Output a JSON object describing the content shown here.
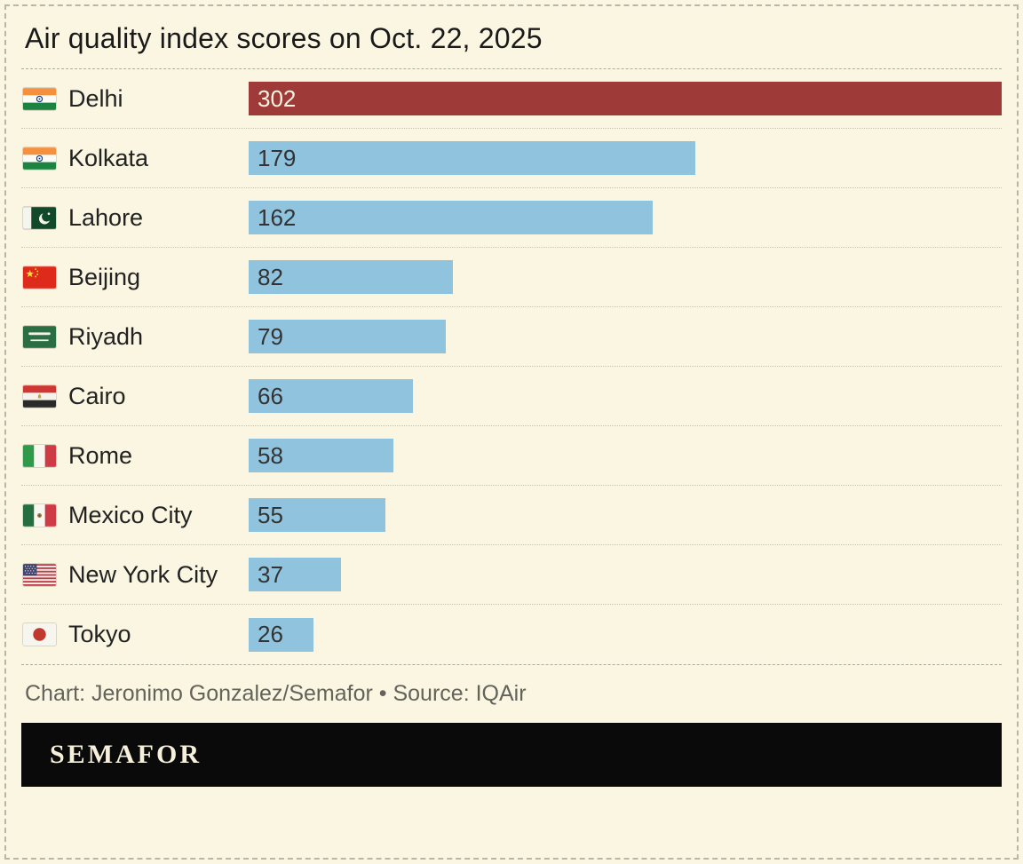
{
  "title": "Air quality index scores on Oct. 22, 2025",
  "chart_data": {
    "type": "bar",
    "orientation": "horizontal",
    "title": "Air quality index scores on Oct. 22, 2025",
    "xlabel": "",
    "ylabel": "",
    "xlim": [
      0,
      302
    ],
    "grid": false,
    "legend": false,
    "value_labels": "inside-bar-left",
    "categories": [
      "Delhi",
      "Kolkata",
      "Lahore",
      "Beijing",
      "Riyadh",
      "Cairo",
      "Rome",
      "Mexico City",
      "New York City",
      "Tokyo"
    ],
    "values": [
      302,
      179,
      162,
      82,
      79,
      66,
      58,
      55,
      37,
      26
    ],
    "rows": [
      {
        "city": "Delhi",
        "flag": "india-flag",
        "value": 302,
        "bar_color": "#9e3a38",
        "label_color": "#f8f4e3"
      },
      {
        "city": "Kolkata",
        "flag": "india-flag",
        "value": 179,
        "bar_color": "#8fc3de",
        "label_color": "#333333"
      },
      {
        "city": "Lahore",
        "flag": "pakistan-flag",
        "value": 162,
        "bar_color": "#8fc3de",
        "label_color": "#333333"
      },
      {
        "city": "Beijing",
        "flag": "china-flag",
        "value": 82,
        "bar_color": "#8fc3de",
        "label_color": "#333333"
      },
      {
        "city": "Riyadh",
        "flag": "saudi-arabia-flag",
        "value": 79,
        "bar_color": "#8fc3de",
        "label_color": "#333333"
      },
      {
        "city": "Cairo",
        "flag": "egypt-flag",
        "value": 66,
        "bar_color": "#8fc3de",
        "label_color": "#333333"
      },
      {
        "city": "Rome",
        "flag": "italy-flag",
        "value": 58,
        "bar_color": "#8fc3de",
        "label_color": "#333333"
      },
      {
        "city": "Mexico City",
        "flag": "mexico-flag",
        "value": 55,
        "bar_color": "#8fc3de",
        "label_color": "#333333"
      },
      {
        "city": "New York City",
        "flag": "usa-flag",
        "value": 37,
        "bar_color": "#8fc3de",
        "label_color": "#333333"
      },
      {
        "city": "Tokyo",
        "flag": "japan-flag",
        "value": 26,
        "bar_color": "#8fc3de",
        "label_color": "#333333"
      }
    ]
  },
  "footer": {
    "credit": "Chart: Jeronimo Gonzalez/Semafor • Source: IQAir"
  },
  "brand": {
    "logo_text": "SEMAFOR"
  },
  "colors": {
    "background": "#faf6e1",
    "bar_default": "#8fc3de",
    "bar_highlight": "#9e3a38",
    "title_text": "#1a1a1a",
    "muted_text": "#63635c",
    "logo_bar_bg": "#0a0a0a",
    "logo_text": "#f6f0da"
  }
}
